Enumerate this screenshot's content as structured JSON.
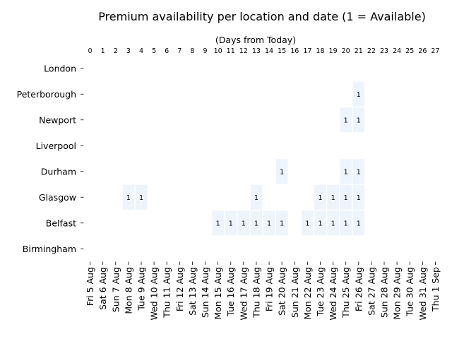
{
  "chart_data": {
    "type": "heatmap",
    "title": "Premium availability per location and date (1 = Available)",
    "top_axis_label": "(Days from Today)",
    "top_ticks": [
      "0",
      "1",
      "2",
      "3",
      "4",
      "5",
      "6",
      "7",
      "8",
      "9",
      "10",
      "11",
      "12",
      "13",
      "14",
      "15",
      "16",
      "17",
      "18",
      "19",
      "20",
      "21",
      "22",
      "23",
      "24",
      "25",
      "26",
      "27"
    ],
    "columns": [
      "Fri 5 Aug",
      "Sat 6 Aug",
      "Sun 7 Aug",
      "Mon 8 Aug",
      "Tue 9 Aug",
      "Wed 10 Aug",
      "Thu 11 Aug",
      "Fri 12 Aug",
      "Sat 13 Aug",
      "Sun 14 Aug",
      "Mon 15 Aug",
      "Tue 16 Aug",
      "Wed 17 Aug",
      "Thu 18 Aug",
      "Fri 19 Aug",
      "Sat 20 Aug",
      "Sun 21 Aug",
      "Mon 22 Aug",
      "Tue 23 Aug",
      "Wed 24 Aug",
      "Thu 25 Aug",
      "Fri 26 Aug",
      "Sat 27 Aug",
      "Sun 28 Aug",
      "Mon 29 Aug",
      "Tue 30 Aug",
      "Wed 31 Aug",
      "Thu 1 Sep"
    ],
    "rows": [
      "London",
      "Peterborough",
      "Newport",
      "Liverpool",
      "Durham",
      "Glasgow",
      "Belfast",
      "Birmingham"
    ],
    "cell_value_label": "1",
    "available": {
      "London": [],
      "Peterborough": [
        21
      ],
      "Newport": [
        20,
        21
      ],
      "Liverpool": [],
      "Durham": [
        15,
        20,
        21
      ],
      "Glasgow": [
        3,
        4,
        13,
        18,
        19,
        20,
        21
      ],
      "Belfast": [
        10,
        11,
        12,
        13,
        14,
        15,
        17,
        18,
        19,
        20,
        21
      ],
      "Birmingham": []
    },
    "cell_color": "#eef4fc",
    "background_color": "#ffffff"
  }
}
